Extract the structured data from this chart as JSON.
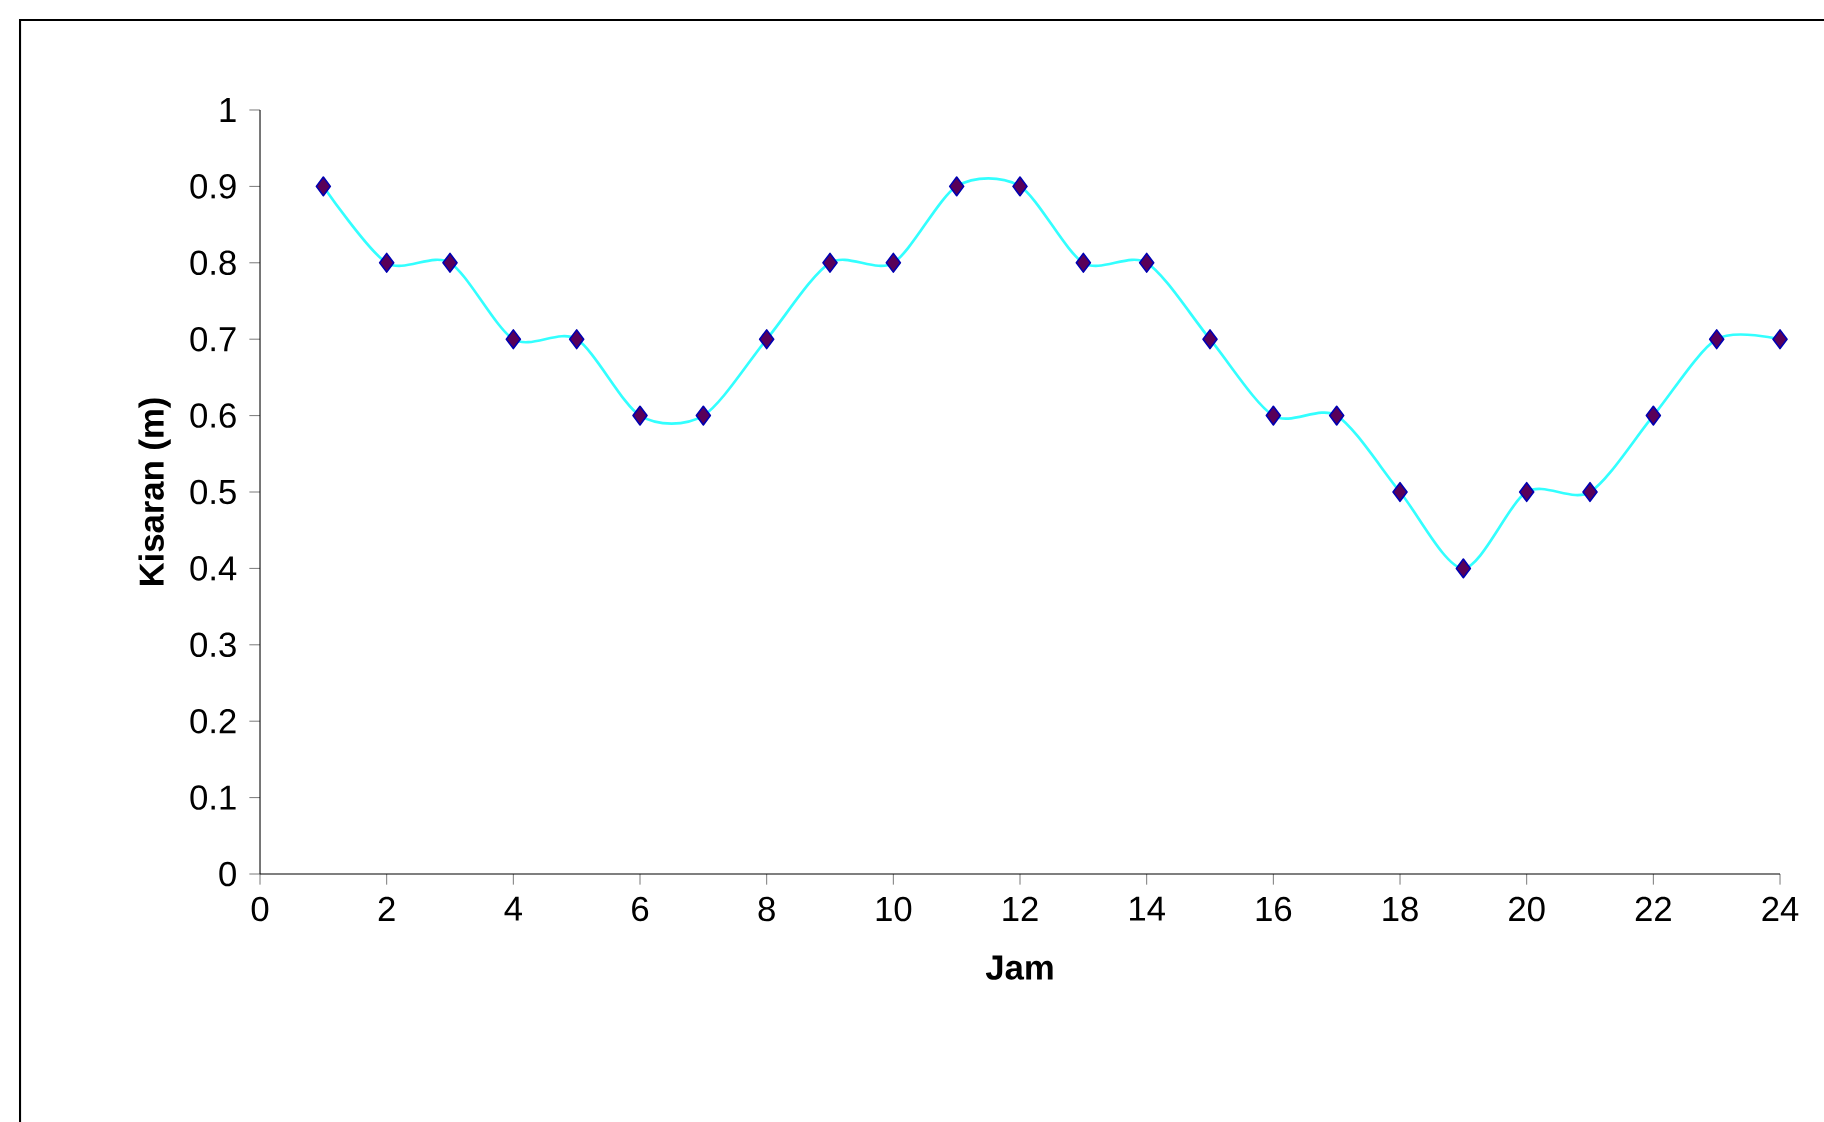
{
  "chart_data": {
    "type": "line",
    "xlabel": "Jam",
    "ylabel": "Kisaran (m)",
    "x": [
      1,
      2,
      3,
      4,
      5,
      6,
      7,
      8,
      9,
      10,
      11,
      12,
      13,
      14,
      15,
      16,
      17,
      18,
      19,
      20,
      21,
      22,
      23,
      24
    ],
    "series": [
      {
        "color": "#33ffff",
        "values": [
          0.9,
          0.8,
          0.8,
          0.7,
          0.7,
          0.6,
          0.6,
          0.7,
          0.8,
          0.8,
          0.9,
          0.9,
          0.8,
          0.8,
          0.7,
          0.6,
          0.6,
          0.5,
          0.4,
          0.5,
          0.5,
          0.6,
          0.7,
          0.7
        ]
      }
    ],
    "xlim": [
      0,
      24
    ],
    "xticks": [
      0,
      2,
      4,
      6,
      8,
      10,
      12,
      14,
      16,
      18,
      20,
      22,
      24
    ],
    "ylim": [
      0,
      1
    ],
    "yticks": [
      0,
      0.1,
      0.2,
      0.3,
      0.4,
      0.5,
      0.6,
      0.7,
      0.8,
      0.9,
      1
    ],
    "grid": false,
    "marker": "diamond",
    "line_style": "solid"
  }
}
